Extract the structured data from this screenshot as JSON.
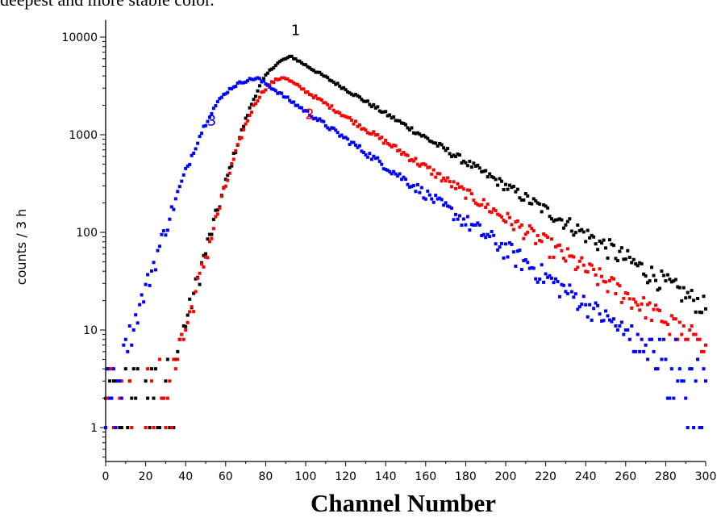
{
  "page": {
    "top_text": "deepest and more stable color."
  },
  "chart_data": {
    "type": "scatter",
    "xlabel": "Channel Number",
    "ylabel": "counts / 3 h",
    "xlim": [
      0,
      300
    ],
    "ylim": [
      0.5,
      15000
    ],
    "yscale": "log",
    "x_ticks": [
      0,
      20,
      40,
      60,
      80,
      100,
      120,
      140,
      160,
      180,
      200,
      220,
      240,
      260,
      280,
      300
    ],
    "y_ticks": [
      {
        "value": 1,
        "label": "1"
      },
      {
        "value": 10,
        "label": "10"
      },
      {
        "value": 100,
        "label": "100"
      },
      {
        "value": 1000,
        "label": "1000"
      },
      {
        "value": 10000,
        "label": "10000"
      }
    ],
    "grid": false,
    "series": [
      {
        "name": "1",
        "color": "#000000",
        "peak_x": 93,
        "peak_y": 6300,
        "rise_center": 78,
        "rise_width": 6.0,
        "decay_per_channel": 0.0285,
        "background": 3.5
      },
      {
        "name": "2",
        "color": "#ff0000",
        "peak_x": 89,
        "peak_y": 3900,
        "rise_center": 75,
        "rise_width": 5.8,
        "decay_per_channel": 0.03,
        "background": 2.6
      },
      {
        "name": "3",
        "color": "#0000ff",
        "peak_x": 76,
        "peak_y": 3800,
        "rise_center": 55,
        "rise_width": 7.0,
        "decay_per_channel": 0.0325,
        "background": 2.0
      }
    ],
    "labels": [
      {
        "text": "1",
        "color": "#000000",
        "x": 95,
        "y": 10500
      },
      {
        "text": "2",
        "color": "#ff0000",
        "x": 102,
        "y": 1450
      },
      {
        "text": "3",
        "color": "#0000ff",
        "x": 53,
        "y": 1250
      }
    ]
  }
}
